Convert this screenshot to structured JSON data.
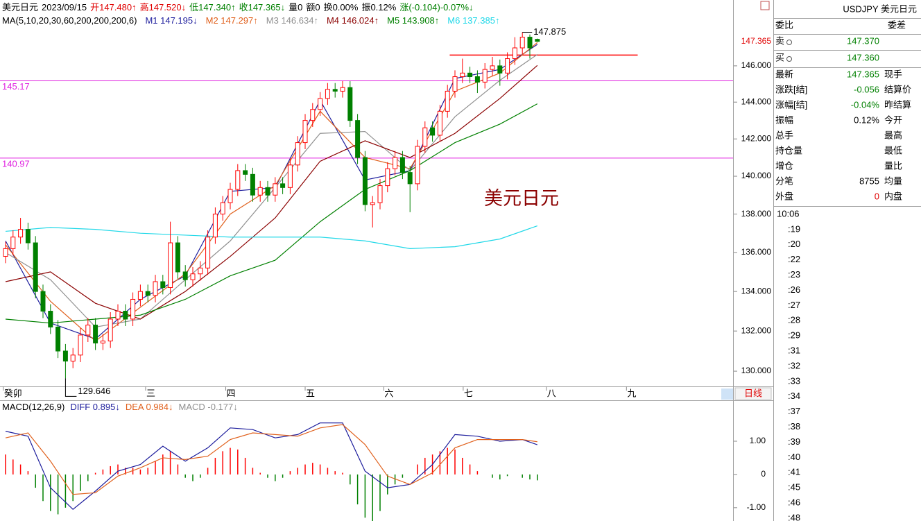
{
  "chart_data": [
    {
      "type": "candlestick",
      "log_scale": true,
      "ylim": [
        129.25,
        149.7
      ],
      "yticks": [
        {
          "value": 146,
          "label": "146.000"
        },
        {
          "value": 144,
          "label": "144.000"
        },
        {
          "value": 142,
          "label": "142.000"
        },
        {
          "value": 140,
          "label": "140.000"
        },
        {
          "value": 138,
          "label": "138.000"
        },
        {
          "value": 136,
          "label": "136.000"
        },
        {
          "value": 134,
          "label": "134.000"
        },
        {
          "value": 132,
          "label": "132.000"
        },
        {
          "value": 130,
          "label": "130.000"
        }
      ],
      "xticks": [
        {
          "value": -0.3,
          "label": "癸卯"
        },
        {
          "value": 18.7,
          "label": "三"
        },
        {
          "value": 29.4,
          "label": "四"
        },
        {
          "value": 40,
          "label": "五"
        },
        {
          "value": 50.5,
          "label": "六"
        },
        {
          "value": 61.1,
          "label": "七"
        },
        {
          "value": 72.2,
          "label": "八"
        },
        {
          "value": 82.9,
          "label": "九"
        }
      ],
      "header": [
        {
          "text": "美元日元",
          "color": "#000000"
        },
        {
          "text": "2023/09/15",
          "color": "#000000"
        },
        {
          "text": "开147.480↑",
          "color": "#e00000"
        },
        {
          "text": "高147.520↓",
          "color": "#e00000"
        },
        {
          "text": "低147.340↑",
          "color": "#008000"
        },
        {
          "text": "收147.365↓",
          "color": "#008000"
        },
        {
          "text": "量0",
          "color": "#000000"
        },
        {
          "text": "额0",
          "color": "#000000"
        },
        {
          "text": "换0.00%",
          "color": "#000000"
        },
        {
          "text": "振0.12%",
          "color": "#000000"
        },
        {
          "text": "涨(-0.104)-0.07%↓",
          "color": "#008000"
        }
      ],
      "ma_title": "MA(5,10,20,30,60,200,200,200,6)",
      "up_color": "#ff0000",
      "down_color": "#008000",
      "open": [
        135.8,
        136.2,
        136.8,
        137.2,
        136.5,
        134.0,
        133.0,
        132.2,
        131.0,
        130.5,
        130.8,
        131.8,
        132.3,
        131.4,
        131.5,
        132.6,
        133.0,
        132.6,
        133.6,
        134.0,
        133.8,
        134.5,
        134.2,
        136.5,
        135.0,
        134.6,
        134.9,
        135.2,
        136.8,
        138.0,
        138.6,
        139.3,
        140.3,
        140.1,
        139.0,
        139.4,
        139.0,
        139.6,
        139.4,
        140.6,
        141.8,
        143.0,
        143.6,
        144.2,
        144.7,
        144.6,
        144.8,
        143.0,
        141.0,
        138.5,
        138.6,
        139.5,
        140.4,
        141.0,
        140.2,
        139.6,
        141.6,
        142.6,
        142.2,
        143.5,
        144.6,
        145.4,
        145.6,
        145.4,
        145.1,
        145.8,
        146.0,
        145.6,
        146.4,
        147.0,
        147.6,
        147.48
      ],
      "high": [
        136.55,
        137.15,
        137.8,
        137.55,
        136.85,
        134.35,
        133.35,
        132.55,
        131.35,
        131.15,
        132.15,
        132.65,
        132.65,
        131.85,
        132.95,
        133.35,
        133.35,
        133.95,
        134.35,
        134.35,
        134.85,
        134.85,
        137.6,
        136.85,
        135.35,
        135.25,
        135.55,
        137.15,
        138.35,
        138.95,
        139.65,
        140.65,
        140.65,
        140.45,
        139.75,
        139.75,
        139.95,
        139.95,
        140.95,
        142.15,
        143.35,
        143.95,
        144.55,
        145.05,
        145.05,
        145.15,
        145.15,
        143.35,
        141.35,
        138.95,
        139.85,
        140.75,
        141.35,
        141.35,
        140.55,
        141.95,
        142.95,
        142.95,
        143.85,
        144.95,
        145.75,
        146.4,
        145.95,
        145.75,
        146.15,
        146.5,
        146.35,
        146.75,
        147.6,
        147.875,
        147.75,
        147.52
      ],
      "low": [
        135.45,
        135.85,
        136.45,
        136.15,
        133.65,
        132.65,
        131.85,
        130.65,
        129.646,
        130.15,
        130.45,
        131.45,
        131.05,
        131.05,
        131.15,
        132.25,
        132.25,
        132.25,
        133.25,
        133.45,
        133.45,
        133.85,
        133.85,
        134.65,
        134.25,
        134.25,
        134.55,
        134.85,
        136.45,
        137.65,
        138.25,
        138.95,
        139.75,
        138.65,
        138.65,
        138.65,
        138.65,
        139.05,
        139.05,
        140.25,
        141.45,
        142.65,
        143.25,
        143.85,
        144.25,
        144.25,
        142.65,
        140.65,
        138.15,
        137.3,
        138.25,
        139.15,
        140.05,
        139.85,
        138.1,
        139.25,
        141.25,
        141.85,
        141.85,
        143.15,
        144.25,
        145.05,
        145.05,
        144.5,
        144.75,
        145.45,
        144.9,
        145.25,
        146.05,
        146.65,
        146.4,
        147.34
      ],
      "close": [
        136.2,
        136.8,
        137.2,
        136.5,
        134.0,
        133.0,
        132.2,
        131.0,
        130.5,
        130.8,
        131.8,
        132.3,
        131.4,
        131.5,
        132.6,
        133.0,
        132.6,
        133.6,
        134.0,
        133.8,
        134.5,
        134.2,
        136.5,
        135.0,
        134.6,
        134.9,
        135.2,
        136.8,
        138.0,
        138.6,
        139.3,
        140.3,
        140.1,
        139.0,
        139.4,
        139.0,
        139.6,
        139.4,
        140.6,
        141.8,
        143.0,
        143.6,
        144.2,
        144.7,
        144.6,
        144.8,
        143.0,
        141.0,
        138.5,
        138.6,
        139.5,
        140.4,
        141.0,
        140.2,
        139.6,
        141.6,
        142.6,
        142.2,
        143.5,
        144.6,
        145.4,
        145.6,
        145.4,
        145.1,
        145.8,
        146.0,
        145.6,
        146.4,
        147.0,
        147.6,
        147.0,
        147.365
      ],
      "ma_index": [
        0,
        6,
        12,
        18,
        24,
        30,
        36,
        42,
        48,
        54,
        60,
        66,
        71
      ],
      "series": [
        {
          "label": "M1 147.195↓",
          "color": "#1c1c9c",
          "values": [
            136.6,
            132.4,
            131.6,
            133.6,
            134.8,
            139.2,
            139.4,
            144.1,
            139.8,
            140.3,
            145.3,
            145.8,
            147.195
          ]
        },
        {
          "label": "M2 147.297↑",
          "color": "#e0601c",
          "values": [
            136.4,
            133.5,
            131.5,
            133.2,
            134.9,
            138.0,
            139.5,
            143.5,
            141.0,
            140.4,
            144.6,
            145.6,
            147.297
          ]
        },
        {
          "label": "M3 146.634↑",
          "color": "#909090",
          "values": [
            136.0,
            134.6,
            132.2,
            132.6,
            134.6,
            136.6,
            139.4,
            142.3,
            142.4,
            140.3,
            143.2,
            145.2,
            146.634
          ]
        },
        {
          "label": "M4 146.024↑",
          "color": "#8b0000",
          "values": [
            134.5,
            135.0,
            133.4,
            132.6,
            134.0,
            135.8,
            137.8,
            140.8,
            141.9,
            141.0,
            142.3,
            144.2,
            146.024
          ]
        },
        {
          "label": "M5 143.908↑",
          "color": "#008000",
          "values": [
            132.6,
            132.4,
            132.6,
            132.8,
            133.6,
            134.8,
            135.6,
            137.6,
            139.3,
            140.3,
            141.8,
            142.8,
            143.908
          ]
        },
        {
          "label": "M6 137.385↑",
          "color": "#20d8e8",
          "values": [
            137.1,
            137.3,
            137.2,
            137.0,
            136.9,
            136.8,
            136.8,
            136.8,
            136.6,
            136.2,
            136.3,
            136.7,
            137.385
          ]
        }
      ],
      "hlines": [
        {
          "value": 145.17,
          "color": "#e020e0"
        },
        {
          "value": 140.97,
          "color": "#e020e0"
        }
      ],
      "red_line": {
        "value": 146.6,
        "from": 59.3,
        "to": 84.4,
        "color": "#ff0000"
      },
      "last_price": 147.365,
      "high_mark": {
        "value": 147.875,
        "index": 69
      },
      "low_mark": {
        "value": 129.646,
        "index": 8
      },
      "annotation": "美元日元",
      "button": "日线"
    },
    {
      "type": "macd",
      "ylim": [
        -1.4,
        2.21
      ],
      "yticks": [
        {
          "value": 1,
          "label": "1.00"
        },
        0,
        {
          "value": -1,
          "label": "-1.00"
        }
      ],
      "header": [
        {
          "text": "MACD(12,26,9)",
          "color": "#000000"
        },
        {
          "text": "DIFF 0.895↓",
          "color": "#1c1c9c"
        },
        {
          "text": "DEA 0.984↓",
          "color": "#e0601c"
        },
        {
          "text": "MACD -0.177↓",
          "color": "#909090"
        }
      ],
      "index": [
        0,
        3,
        6,
        9,
        12,
        15,
        18,
        21,
        24,
        27,
        30,
        33,
        36,
        39,
        42,
        45,
        48,
        51,
        54,
        57,
        60,
        63,
        66,
        69,
        71
      ],
      "series": [
        {
          "color": "#1c1c9c",
          "values": [
            1.3,
            1.15,
            -0.4,
            -1.05,
            -0.5,
            0.1,
            0.3,
            0.85,
            0.4,
            0.8,
            1.4,
            1.35,
            1.1,
            1.2,
            1.55,
            1.55,
            0.1,
            -0.4,
            -0.3,
            0.3,
            1.2,
            1.15,
            1.0,
            1.05,
            0.895
          ]
        },
        {
          "color": "#e0601c",
          "values": [
            1.1,
            1.25,
            0.4,
            -0.6,
            -0.55,
            -0.05,
            0.2,
            0.5,
            0.45,
            0.55,
            1.05,
            1.25,
            1.2,
            1.15,
            1.4,
            1.5,
            0.9,
            -0.05,
            -0.3,
            0.05,
            0.8,
            1.05,
            1.05,
            1.05,
            0.984
          ]
        }
      ],
      "up_color": "#ff0000",
      "down_color": "#008000",
      "hist": [
        0.6,
        0.45,
        0.3,
        0.1,
        -0.4,
        -0.8,
        -1.1,
        -1.2,
        -1.0,
        -0.8,
        -0.5,
        -0.2,
        0.05,
        0.15,
        0.25,
        0.3,
        0.2,
        0.2,
        0.15,
        0.2,
        0.4,
        0.6,
        0.7,
        0.3,
        -0.1,
        -0.2,
        -0.1,
        0.2,
        0.5,
        0.7,
        0.8,
        0.75,
        0.5,
        0.2,
        0.05,
        -0.1,
        -0.2,
        -0.1,
        0.1,
        0.2,
        0.3,
        0.35,
        0.3,
        0.2,
        0.1,
        0.05,
        -0.3,
        -0.9,
        -1.3,
        -1.4,
        -1.1,
        -0.6,
        -0.3,
        -0.1,
        0.0,
        0.3,
        0.5,
        0.6,
        0.7,
        0.8,
        0.75,
        0.5,
        0.3,
        0.1,
        0.0,
        -0.1,
        -0.15,
        -0.05,
        0.0,
        -0.1,
        -0.15,
        -0.177
      ]
    }
  ],
  "quote_panel": {
    "title": "USDJPY 美元日元",
    "left_head": "委比",
    "right_head": "委差",
    "sell": {
      "label": "卖",
      "value": "147.370"
    },
    "buy": {
      "label": "买",
      "value": "147.360"
    },
    "rows": [
      {
        "left": "最新",
        "value": "147.365",
        "color": "#008000",
        "right": "现手"
      },
      {
        "left": "涨跌[结]",
        "value": "-0.056",
        "color": "#008000",
        "right": "结算价"
      },
      {
        "left": "涨幅[结]",
        "value": "-0.04%",
        "color": "#008000",
        "right": "昨结算"
      },
      {
        "left": "振幅",
        "value": "0.12%",
        "color": "#000000",
        "right": "今开"
      },
      {
        "left": "总手",
        "right": "最高"
      },
      {
        "left": "持仓量",
        "right": "最低"
      },
      {
        "left": "增仓",
        "right": "量比"
      },
      {
        "left": "分笔",
        "value": "8755",
        "color": "#000000",
        "right": "均量"
      },
      {
        "left": "外盘",
        "value": "0",
        "color": "#e00000",
        "right": "内盘"
      }
    ],
    "times": [
      "10:06",
      ":19",
      ":20",
      ":22",
      ":23",
      ":26",
      ":27",
      ":28",
      ":29",
      ":31",
      ":32",
      ":33",
      ":34",
      ":37",
      ":38",
      ":39",
      ":40",
      ":41",
      ":45",
      ":46",
      ":48"
    ]
  }
}
